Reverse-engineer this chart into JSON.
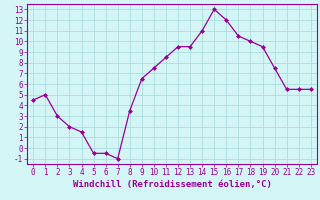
{
  "x": [
    0,
    1,
    2,
    3,
    4,
    5,
    6,
    7,
    8,
    9,
    10,
    11,
    12,
    13,
    14,
    15,
    16,
    17,
    18,
    19,
    20,
    21,
    22,
    23
  ],
  "y": [
    4.5,
    5.0,
    3.0,
    2.0,
    1.5,
    -0.5,
    -0.5,
    -1.0,
    3.5,
    6.5,
    7.5,
    8.5,
    9.5,
    9.5,
    11.0,
    13.0,
    12.0,
    10.5,
    10.0,
    9.5,
    7.5,
    5.5,
    5.5,
    5.5
  ],
  "line_color": "#990099",
  "marker": "D",
  "marker_size": 2,
  "bg_color": "#d4f5f5",
  "grid_color": "#aadddd",
  "axis_color": "#990099",
  "xlabel": "Windchill (Refroidissement éolien,°C)",
  "xlim": [
    -0.5,
    23.5
  ],
  "ylim": [
    -1.5,
    13.5
  ],
  "yticks": [
    -1,
    0,
    1,
    2,
    3,
    4,
    5,
    6,
    7,
    8,
    9,
    10,
    11,
    12,
    13
  ],
  "xticks": [
    0,
    1,
    2,
    3,
    4,
    5,
    6,
    7,
    8,
    9,
    10,
    11,
    12,
    13,
    14,
    15,
    16,
    17,
    18,
    19,
    20,
    21,
    22,
    23
  ],
  "tick_fontsize": 5.5,
  "xlabel_fontsize": 6.5
}
